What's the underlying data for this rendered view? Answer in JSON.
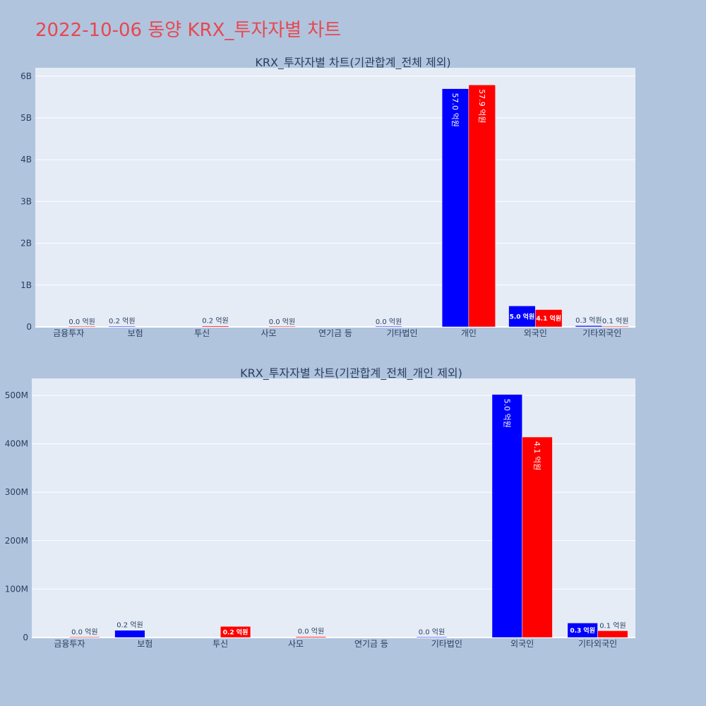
{
  "title": "2022-10-06 동양 KRX_투자자별 차트",
  "colors": {
    "buy": "#0000ff",
    "sell": "#ff0000",
    "plot_bg": "#e5ecf6",
    "page_bg": "#b0c4de",
    "title": "#e8474f",
    "text": "#2a3f5f"
  },
  "chart_data": [
    {
      "type": "bar",
      "title": "KRX_투자자별 차트(기관합계_전체 제외)",
      "categories": [
        "금융투자",
        "보험",
        "투신",
        "사모",
        "연기금 등",
        "기타법인",
        "개인",
        "외국인",
        "기타외국인"
      ],
      "yticks": [
        0,
        1000000000,
        2000000000,
        3000000000,
        4000000000,
        5000000000,
        6000000000
      ],
      "ytick_labels": [
        "0",
        "1B",
        "2B",
        "3B",
        "4B",
        "5B",
        "6B"
      ],
      "ylim": [
        0,
        6200000000
      ],
      "grid": true,
      "series": [
        {
          "color": "#0000ff",
          "values": [
            null,
            15000000,
            null,
            null,
            null,
            1000000,
            5700000000,
            502000000,
            30000000
          ],
          "labels": [
            null,
            "0.2 억원",
            null,
            null,
            null,
            "0.0 억원",
            "57.0 억원",
            "5.0 억원",
            "0.3 억원"
          ]
        },
        {
          "color": "#ff0000",
          "values": [
            1000000,
            null,
            23000000,
            2000000,
            null,
            null,
            5790000000,
            414000000,
            14000000
          ],
          "labels": [
            "0.0 억원",
            null,
            "0.2 억원",
            "0.0 억원",
            null,
            null,
            "57.9 억원",
            "4.1 억원",
            "0.1 억원"
          ]
        }
      ]
    },
    {
      "type": "bar",
      "title": "KRX_투자자별 차트(기관합계_전체_개인 제외)",
      "categories": [
        "금융투자",
        "보험",
        "투신",
        "사모",
        "연기금 등",
        "기타법인",
        "외국인",
        "기타외국인"
      ],
      "yticks": [
        0,
        100000000,
        200000000,
        300000000,
        400000000,
        500000000
      ],
      "ytick_labels": [
        "0",
        "100M",
        "200M",
        "300M",
        "400M",
        "500M"
      ],
      "ylim": [
        0,
        535000000
      ],
      "grid": true,
      "series": [
        {
          "color": "#0000ff",
          "values": [
            null,
            15000000,
            null,
            null,
            null,
            1000000,
            502000000,
            30000000
          ],
          "labels": [
            null,
            "0.2 억원",
            null,
            null,
            null,
            "0.0 억원",
            "5.0 억원",
            "0.3 억원"
          ]
        },
        {
          "color": "#ff0000",
          "values": [
            1000000,
            null,
            23000000,
            2000000,
            null,
            null,
            414000000,
            14000000
          ],
          "labels": [
            "0.0 억원",
            null,
            "0.2 억원",
            "0.0 억원",
            null,
            null,
            "4.1 억원",
            "0.1 억원"
          ]
        }
      ]
    }
  ]
}
